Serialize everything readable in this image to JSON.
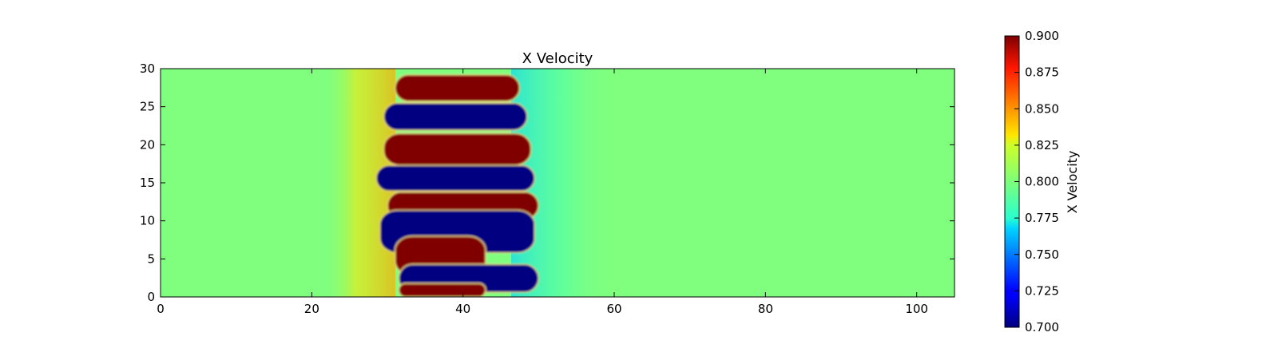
{
  "chart_data": {
    "type": "heatmap",
    "title": "X Velocity",
    "xlabel": "",
    "ylabel": "",
    "xlim": [
      0,
      105
    ],
    "ylim": [
      0,
      30
    ],
    "x_ticks": [
      0,
      20,
      40,
      60,
      80,
      100
    ],
    "y_ticks": [
      0,
      5,
      10,
      15,
      20,
      25,
      30
    ],
    "colormap": "jet",
    "background_value": 0.8,
    "colorbar": {
      "label": "X Velocity",
      "range": [
        0.7,
        0.9
      ],
      "ticks": [
        "0.700",
        "0.725",
        "0.750",
        "0.775",
        "0.800",
        "0.825",
        "0.850",
        "0.875",
        "0.900"
      ]
    },
    "structures": [
      {
        "region": "band",
        "x_range": [
          28,
          52
        ],
        "y_range": [
          0,
          30
        ],
        "description": "vortex street of alternating high/low velocity lobes"
      },
      {
        "value": 0.9,
        "x": [
          31,
          47.5
        ],
        "y": [
          25.7,
          29.2
        ]
      },
      {
        "value": 0.7,
        "x": [
          29.5,
          48.5
        ],
        "y": [
          21.9,
          25.5
        ]
      },
      {
        "value": 0.9,
        "x": [
          29.5,
          49
        ],
        "y": [
          17.3,
          21.5
        ]
      },
      {
        "value": 0.7,
        "x": [
          28.5,
          49.5
        ],
        "y": [
          13.9,
          17.3
        ]
      },
      {
        "value": 0.9,
        "x": [
          30,
          50
        ],
        "y": [
          10.2,
          13.8
        ]
      },
      {
        "value": 0.7,
        "x": [
          29,
          49.5
        ],
        "y": [
          5.8,
          11.4
        ]
      },
      {
        "value": 0.9,
        "x": [
          31,
          43
        ],
        "y": [
          2.8,
          8.0
        ]
      },
      {
        "value": 0.7,
        "x": [
          31.5,
          50
        ],
        "y": [
          0.6,
          4.3
        ]
      },
      {
        "value": 0.9,
        "x": [
          31.5,
          43
        ],
        "y": [
          0,
          1.8
        ]
      }
    ]
  }
}
